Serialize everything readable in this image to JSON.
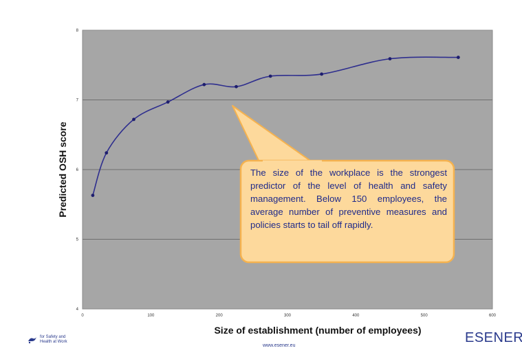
{
  "chart_data": {
    "type": "line",
    "xlabel": "Size of establishment (number of employees)",
    "ylabel": "Predicted OSH score",
    "xlim": [
      0,
      600
    ],
    "ylim": [
      4,
      8
    ],
    "xticks": [
      0,
      100,
      200,
      300,
      400,
      500,
      600
    ],
    "yticks": [
      4,
      5,
      6,
      7,
      8
    ],
    "grid": "horizontal",
    "series": [
      {
        "x": [
          15,
          35,
          75,
          125,
          178,
          225,
          275,
          350,
          450,
          550
        ],
        "values": [
          5.63,
          6.24,
          6.72,
          6.97,
          7.22,
          7.19,
          7.34,
          7.37,
          7.59,
          7.61
        ]
      }
    ],
    "annotation": "The size of the workplace is the strongest predictor of the level of health and safety management. Below 150 employees, the average number of preventive measures and policies starts to tail off rapidly."
  },
  "footer": {
    "left_text": "for Safety and Health at Work",
    "url": "www.esener.eu",
    "brand": "ESENER"
  },
  "colors": {
    "plot_bg": "#a6a6a6",
    "line": "#2e2e8e",
    "callout_fill": "#fdd99c",
    "callout_border": "#f5b24f",
    "text_navy": "#1f2a8a"
  }
}
